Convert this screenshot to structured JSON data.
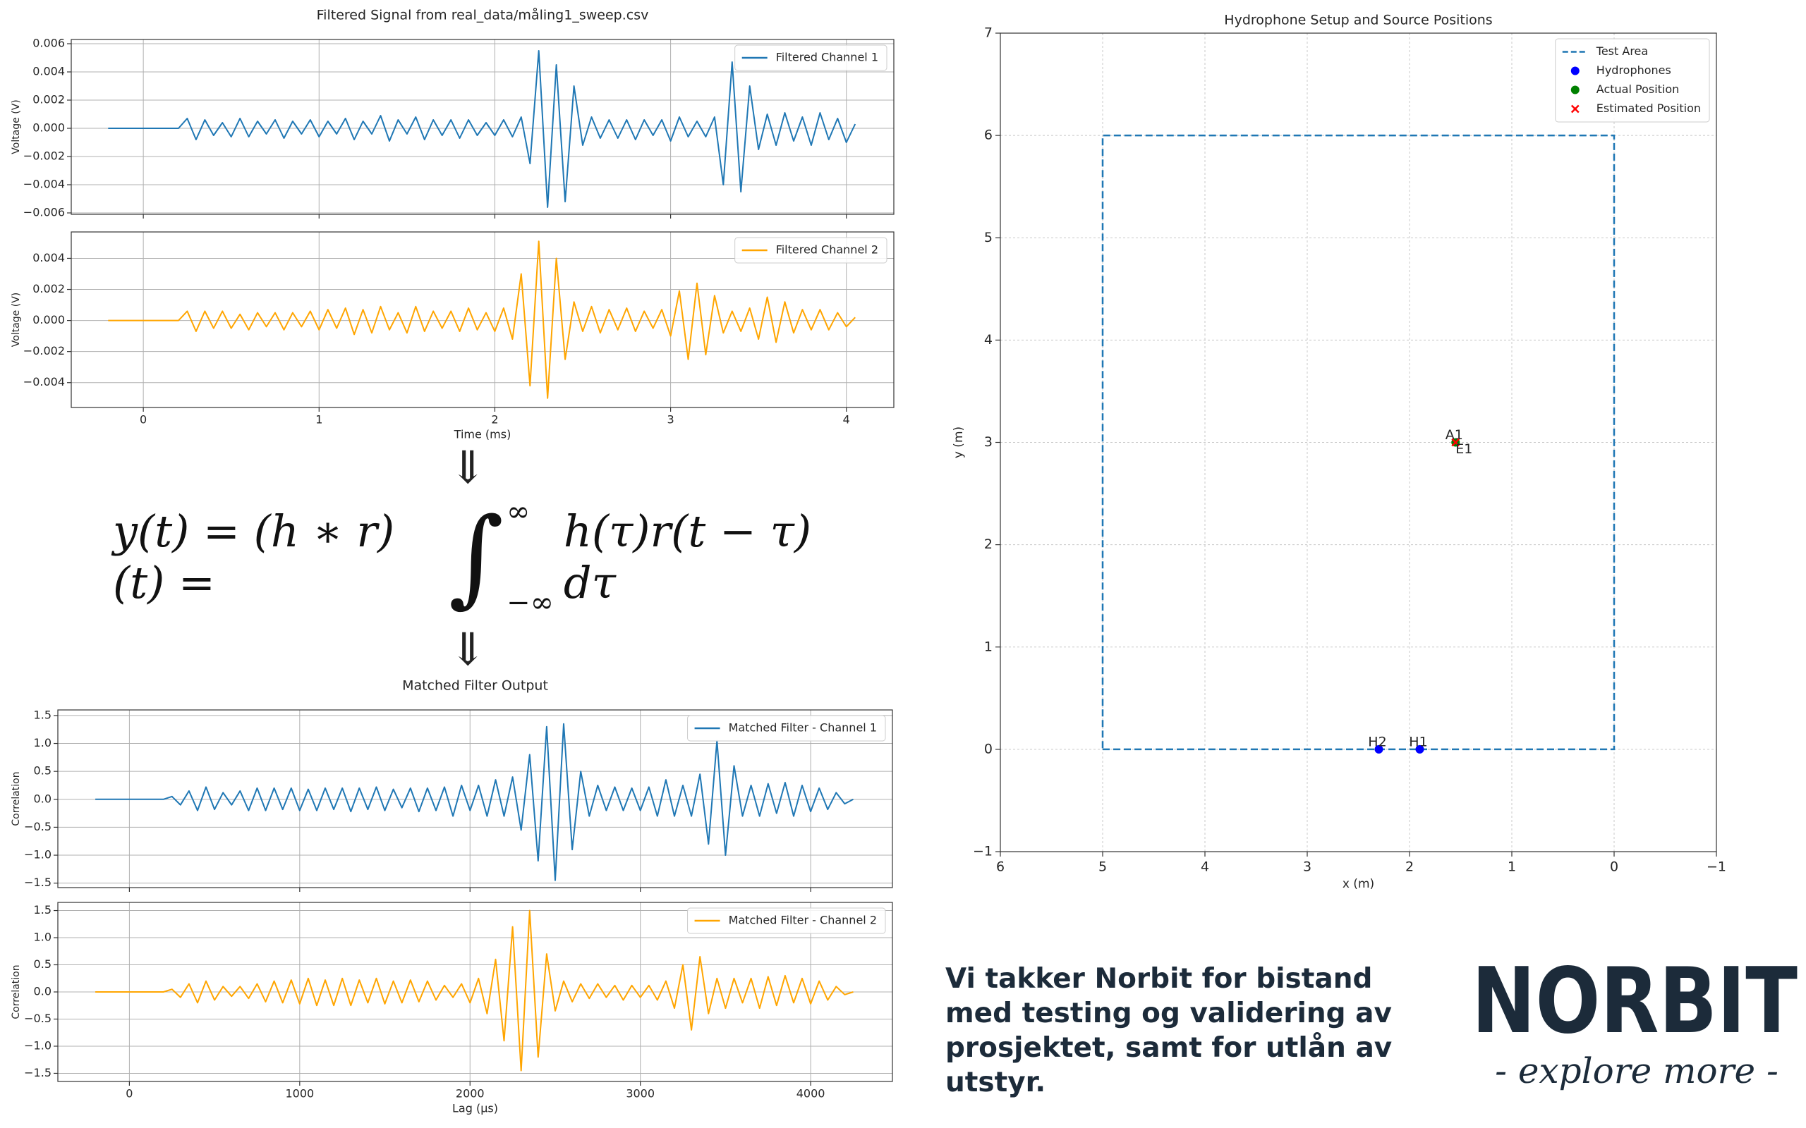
{
  "chart_data": [
    {
      "type": "line",
      "title": "Filtered Signal from real_data/måling1_sweep.csv",
      "xlabel": "Time (ms)",
      "x": [
        -0.2,
        -0.15,
        -0.1,
        -0.05,
        0,
        0.05,
        0.1,
        0.15,
        0.2,
        0.25,
        0.3,
        0.35,
        0.4,
        0.45,
        0.5,
        0.55,
        0.6,
        0.65,
        0.7,
        0.75,
        0.8,
        0.85,
        0.9,
        0.95,
        1,
        1.05,
        1.1,
        1.15,
        1.2,
        1.25,
        1.3,
        1.35,
        1.4,
        1.45,
        1.5,
        1.55,
        1.6,
        1.65,
        1.7,
        1.75,
        1.8,
        1.85,
        1.9,
        1.95,
        2,
        2.05,
        2.1,
        2.15,
        2.2,
        2.25,
        2.3,
        2.35,
        2.4,
        2.45,
        2.5,
        2.55,
        2.6,
        2.65,
        2.7,
        2.75,
        2.8,
        2.85,
        2.9,
        2.95,
        3,
        3.05,
        3.1,
        3.15,
        3.2,
        3.25,
        3.3,
        3.35,
        3.4,
        3.45,
        3.5,
        3.55,
        3.6,
        3.65,
        3.7,
        3.75,
        3.8,
        3.85,
        3.9,
        3.95,
        4,
        4.05
      ],
      "xlim": [
        -0.41,
        4.27
      ],
      "xticks": [
        0,
        1,
        2,
        3,
        4
      ],
      "grid": true,
      "legend": "upper right",
      "panels": [
        {
          "ylabel": "Voltage (V)",
          "ylim": [
            -0.0061,
            0.0063
          ],
          "yticks": [
            {
              "value": -0.006,
              "label": "−0.006"
            },
            {
              "value": -0.004,
              "label": "−0.004"
            },
            {
              "value": -0.002,
              "label": "−0.002"
            },
            {
              "value": 0,
              "label": "0.000"
            },
            0.002,
            0.004,
            0.006
          ],
          "series": [
            {
              "name": "Filtered Channel 1",
              "color": "#1f77b4",
              "values": [
                0,
                0,
                0,
                0,
                0,
                0,
                0,
                0,
                0,
                0.0007,
                -0.0008,
                0.0006,
                -0.0005,
                0.0004,
                -0.0006,
                0.0007,
                -0.0006,
                0.0005,
                -0.0004,
                0.0006,
                -0.0007,
                0.0005,
                -0.0004,
                0.0006,
                -0.0006,
                0.0005,
                -0.0004,
                0.0007,
                -0.0008,
                0.0005,
                -0.0004,
                0.0009,
                -0.0009,
                0.0006,
                -0.0004,
                0.0008,
                -0.0008,
                0.0006,
                -0.0005,
                0.0006,
                -0.0007,
                0.0006,
                -0.0005,
                0.0004,
                -0.0005,
                0.0006,
                -0.0006,
                0.0008,
                -0.0025,
                0.0055,
                -0.0056,
                0.0045,
                -0.0052,
                0.003,
                -0.0012,
                0.0008,
                -0.0007,
                0.0006,
                -0.0007,
                0.0006,
                -0.0008,
                0.0006,
                -0.0005,
                0.0006,
                -0.0009,
                0.0008,
                -0.0006,
                0.0005,
                -0.0006,
                0.0008,
                -0.004,
                0.0047,
                -0.0045,
                0.003,
                -0.0015,
                0.001,
                -0.0012,
                0.0011,
                -0.0009,
                0.0008,
                -0.0012,
                0.0011,
                -0.0008,
                0.0007,
                -0.001,
                0.0003
              ]
            }
          ]
        },
        {
          "ylabel": "Voltage (V)",
          "ylim": [
            -0.0056,
            0.0057
          ],
          "yticks": [
            {
              "value": -0.004,
              "label": "−0.004"
            },
            {
              "value": -0.002,
              "label": "−0.002"
            },
            {
              "value": 0,
              "label": "0.000"
            },
            0.002,
            0.004
          ],
          "series": [
            {
              "name": "Filtered Channel 2",
              "color": "#ffa500",
              "values": [
                0,
                0,
                0,
                0,
                0,
                0,
                0,
                0,
                0,
                0.0006,
                -0.0007,
                0.0006,
                -0.0005,
                0.0006,
                -0.0005,
                0.0004,
                -0.0006,
                0.0005,
                -0.0004,
                0.0005,
                -0.0006,
                0.0005,
                -0.0004,
                0.0006,
                -0.0006,
                0.0007,
                -0.0005,
                0.0008,
                -0.0009,
                0.0007,
                -0.0008,
                0.0009,
                -0.0006,
                0.0005,
                -0.0008,
                0.0009,
                -0.0007,
                0.0006,
                -0.0005,
                0.0006,
                -0.0007,
                0.0008,
                -0.0006,
                0.0005,
                -0.0007,
                0.0008,
                -0.0012,
                0.003,
                -0.0042,
                0.0051,
                -0.005,
                0.004,
                -0.0025,
                0.0012,
                -0.0007,
                0.0009,
                -0.0008,
                0.0007,
                -0.0006,
                0.0008,
                -0.0007,
                0.0006,
                -0.0005,
                0.0007,
                -0.001,
                0.0019,
                -0.0025,
                0.0024,
                -0.0022,
                0.0016,
                -0.0008,
                0.0006,
                -0.0007,
                0.0008,
                -0.0012,
                0.0015,
                -0.0014,
                0.0012,
                -0.0008,
                0.0007,
                -0.0006,
                0.0007,
                -0.0006,
                0.0005,
                -0.0004,
                0.0002
              ]
            }
          ]
        }
      ]
    },
    {
      "type": "line",
      "title": "Matched Filter Output",
      "xlabel": "Lag (µs)",
      "x": [
        -200,
        -150,
        -100,
        -50,
        0,
        50,
        100,
        150,
        200,
        250,
        300,
        350,
        400,
        450,
        500,
        550,
        600,
        650,
        700,
        750,
        800,
        850,
        900,
        950,
        1000,
        1050,
        1100,
        1150,
        1200,
        1250,
        1300,
        1350,
        1400,
        1450,
        1500,
        1550,
        1600,
        1650,
        1700,
        1750,
        1800,
        1850,
        1900,
        1950,
        2000,
        2050,
        2100,
        2150,
        2200,
        2250,
        2300,
        2350,
        2400,
        2450,
        2500,
        2550,
        2600,
        2650,
        2700,
        2750,
        2800,
        2850,
        2900,
        2950,
        3000,
        3050,
        3100,
        3150,
        3200,
        3250,
        3300,
        3350,
        3400,
        3450,
        3500,
        3550,
        3600,
        3650,
        3700,
        3750,
        3800,
        3850,
        3900,
        3950,
        4000,
        4050,
        4100,
        4150,
        4200,
        4250
      ],
      "xlim": [
        -420,
        4480
      ],
      "xticks": [
        0,
        1000,
        2000,
        3000,
        4000
      ],
      "grid": true,
      "legend": "upper right",
      "panels": [
        {
          "ylabel": "Correlation",
          "ylim": [
            -1.58,
            1.6
          ],
          "yticks": [
            {
              "value": -1.5,
              "label": "−1.5"
            },
            {
              "value": -1,
              "label": "−1.0"
            },
            {
              "value": -0.5,
              "label": "−0.5"
            },
            {
              "value": 0,
              "label": "0.0"
            },
            0.5,
            {
              "value": 1,
              "label": "1.0"
            },
            1.5
          ],
          "series": [
            {
              "name": "Matched Filter - Channel 1",
              "color": "#1f77b4",
              "values": [
                0,
                0,
                0,
                0,
                0,
                0,
                0,
                0,
                0,
                0.05,
                -0.1,
                0.15,
                -0.2,
                0.22,
                -0.18,
                0.12,
                -0.1,
                0.15,
                -0.2,
                0.2,
                -0.2,
                0.2,
                -0.18,
                0.2,
                -0.2,
                0.18,
                -0.2,
                0.2,
                -0.18,
                0.2,
                -0.22,
                0.2,
                -0.18,
                0.22,
                -0.2,
                0.18,
                -0.15,
                0.2,
                -0.22,
                0.2,
                -0.2,
                0.22,
                -0.3,
                0.25,
                -0.2,
                0.25,
                -0.3,
                0.35,
                -0.3,
                0.4,
                -0.55,
                0.8,
                -1.1,
                1.3,
                -1.45,
                1.35,
                -0.9,
                0.5,
                -0.3,
                0.25,
                -0.2,
                0.22,
                -0.2,
                0.2,
                -0.2,
                0.22,
                -0.3,
                0.35,
                -0.3,
                0.25,
                -0.3,
                0.45,
                -0.8,
                1.05,
                -1,
                0.6,
                -0.3,
                0.25,
                -0.3,
                0.28,
                -0.25,
                0.3,
                -0.3,
                0.25,
                -0.22,
                0.2,
                -0.18,
                0.12,
                -0.08,
                0
              ]
            }
          ]
        },
        {
          "ylabel": "Correlation",
          "ylim": [
            -1.65,
            1.65
          ],
          "yticks": [
            {
              "value": -1.5,
              "label": "−1.5"
            },
            {
              "value": -1,
              "label": "−1.0"
            },
            {
              "value": -0.5,
              "label": "−0.5"
            },
            {
              "value": 0,
              "label": "0.0"
            },
            0.5,
            {
              "value": 1,
              "label": "1.0"
            },
            1.5
          ],
          "series": [
            {
              "name": "Matched Filter - Channel 2",
              "color": "#ffa500",
              "values": [
                0,
                0,
                0,
                0,
                0,
                0,
                0,
                0,
                0,
                0.05,
                -0.1,
                0.15,
                -0.2,
                0.2,
                -0.15,
                0.1,
                -0.08,
                0.1,
                -0.12,
                0.15,
                -0.18,
                0.2,
                -0.2,
                0.22,
                -0.22,
                0.25,
                -0.25,
                0.22,
                -0.25,
                0.25,
                -0.25,
                0.22,
                -0.2,
                0.25,
                -0.22,
                0.2,
                -0.2,
                0.22,
                -0.18,
                0.2,
                -0.15,
                0.12,
                -0.1,
                0.15,
                -0.2,
                0.25,
                -0.4,
                0.6,
                -0.9,
                1.2,
                -1.45,
                1.5,
                -1.2,
                0.7,
                -0.35,
                0.2,
                -0.18,
                0.15,
                -0.12,
                0.15,
                -0.1,
                0.12,
                -0.15,
                0.12,
                -0.1,
                0.12,
                -0.15,
                0.2,
                -0.3,
                0.5,
                -0.7,
                0.65,
                -0.4,
                0.25,
                -0.3,
                0.25,
                -0.2,
                0.25,
                -0.3,
                0.28,
                -0.25,
                0.3,
                -0.2,
                0.25,
                -0.22,
                0.2,
                -0.15,
                0.1,
                -0.05,
                0
              ]
            }
          ]
        }
      ]
    },
    {
      "type": "scatter",
      "title": "Hydrophone Setup and Source Positions",
      "xlabel": "x (m)",
      "ylabel": "y (m)",
      "xlim": [
        6,
        -1
      ],
      "ylim": [
        -1,
        7
      ],
      "xticks": [
        6,
        5,
        4,
        3,
        2,
        1,
        0,
        {
          "value": -1,
          "label": "−1"
        }
      ],
      "yticks": [
        {
          "value": -1,
          "label": "−1"
        },
        0,
        1,
        2,
        3,
        4,
        5,
        6,
        7
      ],
      "grid": true,
      "legend": "upper right",
      "series": [
        {
          "name": "Test Area",
          "type": "line",
          "style": "dashed",
          "color": "#1f77b4",
          "x": [
            5,
            0,
            0,
            5,
            5
          ],
          "y": [
            0,
            0,
            6,
            6,
            0
          ]
        },
        {
          "name": "Hydrophones",
          "type": "scatter",
          "marker": "o",
          "color": "#0000ff",
          "x": [
            1.9,
            2.3
          ],
          "y": [
            0,
            0
          ],
          "labels": [
            "H1",
            "H2"
          ]
        },
        {
          "name": "Actual Position",
          "type": "scatter",
          "marker": "o",
          "color": "#008000",
          "x": [
            1.55
          ],
          "y": [
            3
          ],
          "labels": [
            "A1"
          ]
        },
        {
          "name": "Estimated Position",
          "type": "scatter",
          "marker": "x",
          "color": "#ff0000",
          "x": [
            1.55
          ],
          "y": [
            3
          ],
          "labels": [
            "E1"
          ]
        }
      ]
    }
  ],
  "arrows": [
    "⇓",
    "⇓"
  ],
  "equation": {
    "lhs": "y(t) = (h ∗ r)(t) =",
    "integral": "∫",
    "upper": "∞",
    "lower": "−∞",
    "integrand": "h(τ)r(t − τ) dτ"
  },
  "acknowledgement": [
    "Vi takker Norbit for bistand",
    "med testing og validering av",
    "prosjektet, samt for utlån av",
    "utstyr."
  ],
  "logo": {
    "wordmark": "NORBIT",
    "tagline": "- explore more -"
  }
}
